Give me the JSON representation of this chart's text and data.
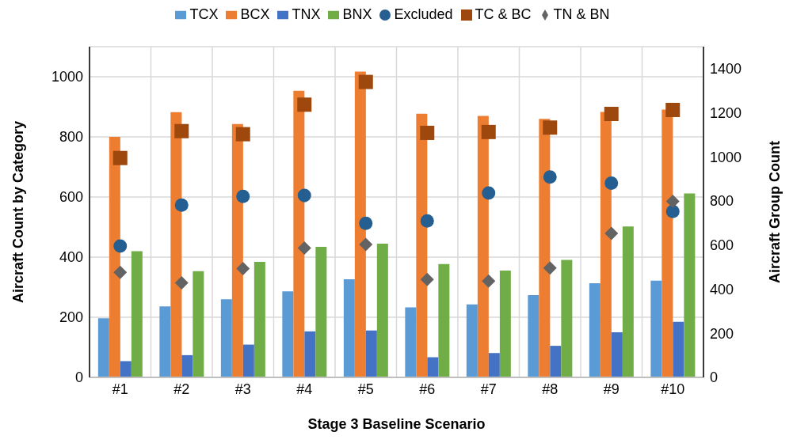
{
  "chart_data": {
    "type": "bar",
    "xlabel": "Stage 3 Baseline Scenario",
    "ylabel": "Aircraft Count by Category",
    "y2label": "Aircraft Group Count",
    "categories": [
      "#1",
      "#2",
      "#3",
      "#4",
      "#5",
      "#6",
      "#7",
      "#8",
      "#9",
      "#10"
    ],
    "series": [
      {
        "name": "TCX",
        "color": "#5b9bd5",
        "values": [
          197,
          236,
          260,
          286,
          326,
          233,
          243,
          274,
          313,
          322
        ]
      },
      {
        "name": "BCX",
        "color": "#ed7d31",
        "values": [
          800,
          882,
          843,
          953,
          1017,
          877,
          870,
          860,
          883,
          891
        ]
      },
      {
        "name": "TNX",
        "color": "#4472c4",
        "values": [
          54,
          74,
          109,
          153,
          156,
          67,
          81,
          105,
          150,
          185
        ]
      },
      {
        "name": "BNX",
        "color": "#70ad47",
        "values": [
          420,
          353,
          384,
          434,
          445,
          377,
          355,
          391,
          502,
          612
        ]
      },
      {
        "name": "Excluded",
        "type": "scatter",
        "axis": "y2",
        "marker": "circle",
        "color": "#255e91",
        "values": [
          596,
          781,
          821,
          825,
          699,
          710,
          836,
          909,
          881,
          753
        ]
      },
      {
        "name": "TC & BC",
        "type": "scatter",
        "axis": "y2",
        "marker": "square",
        "color": "#9e480e",
        "values": [
          995,
          1117,
          1103,
          1237,
          1340,
          1109,
          1113,
          1133,
          1195,
          1213
        ]
      },
      {
        "name": "TN & BN",
        "type": "scatter",
        "axis": "y2",
        "marker": "diamond",
        "color": "#636363",
        "values": [
          476,
          429,
          493,
          587,
          603,
          444,
          437,
          496,
          653,
          798
        ]
      }
    ],
    "ylim": [
      0,
      1100
    ],
    "yticks": [
      0,
      200,
      400,
      600,
      800,
      1000
    ],
    "y2lim": [
      0,
      1500
    ],
    "y2ticks": [
      0,
      200,
      400,
      600,
      800,
      1000,
      1200,
      1400
    ],
    "grid": true,
    "legend": "top"
  }
}
